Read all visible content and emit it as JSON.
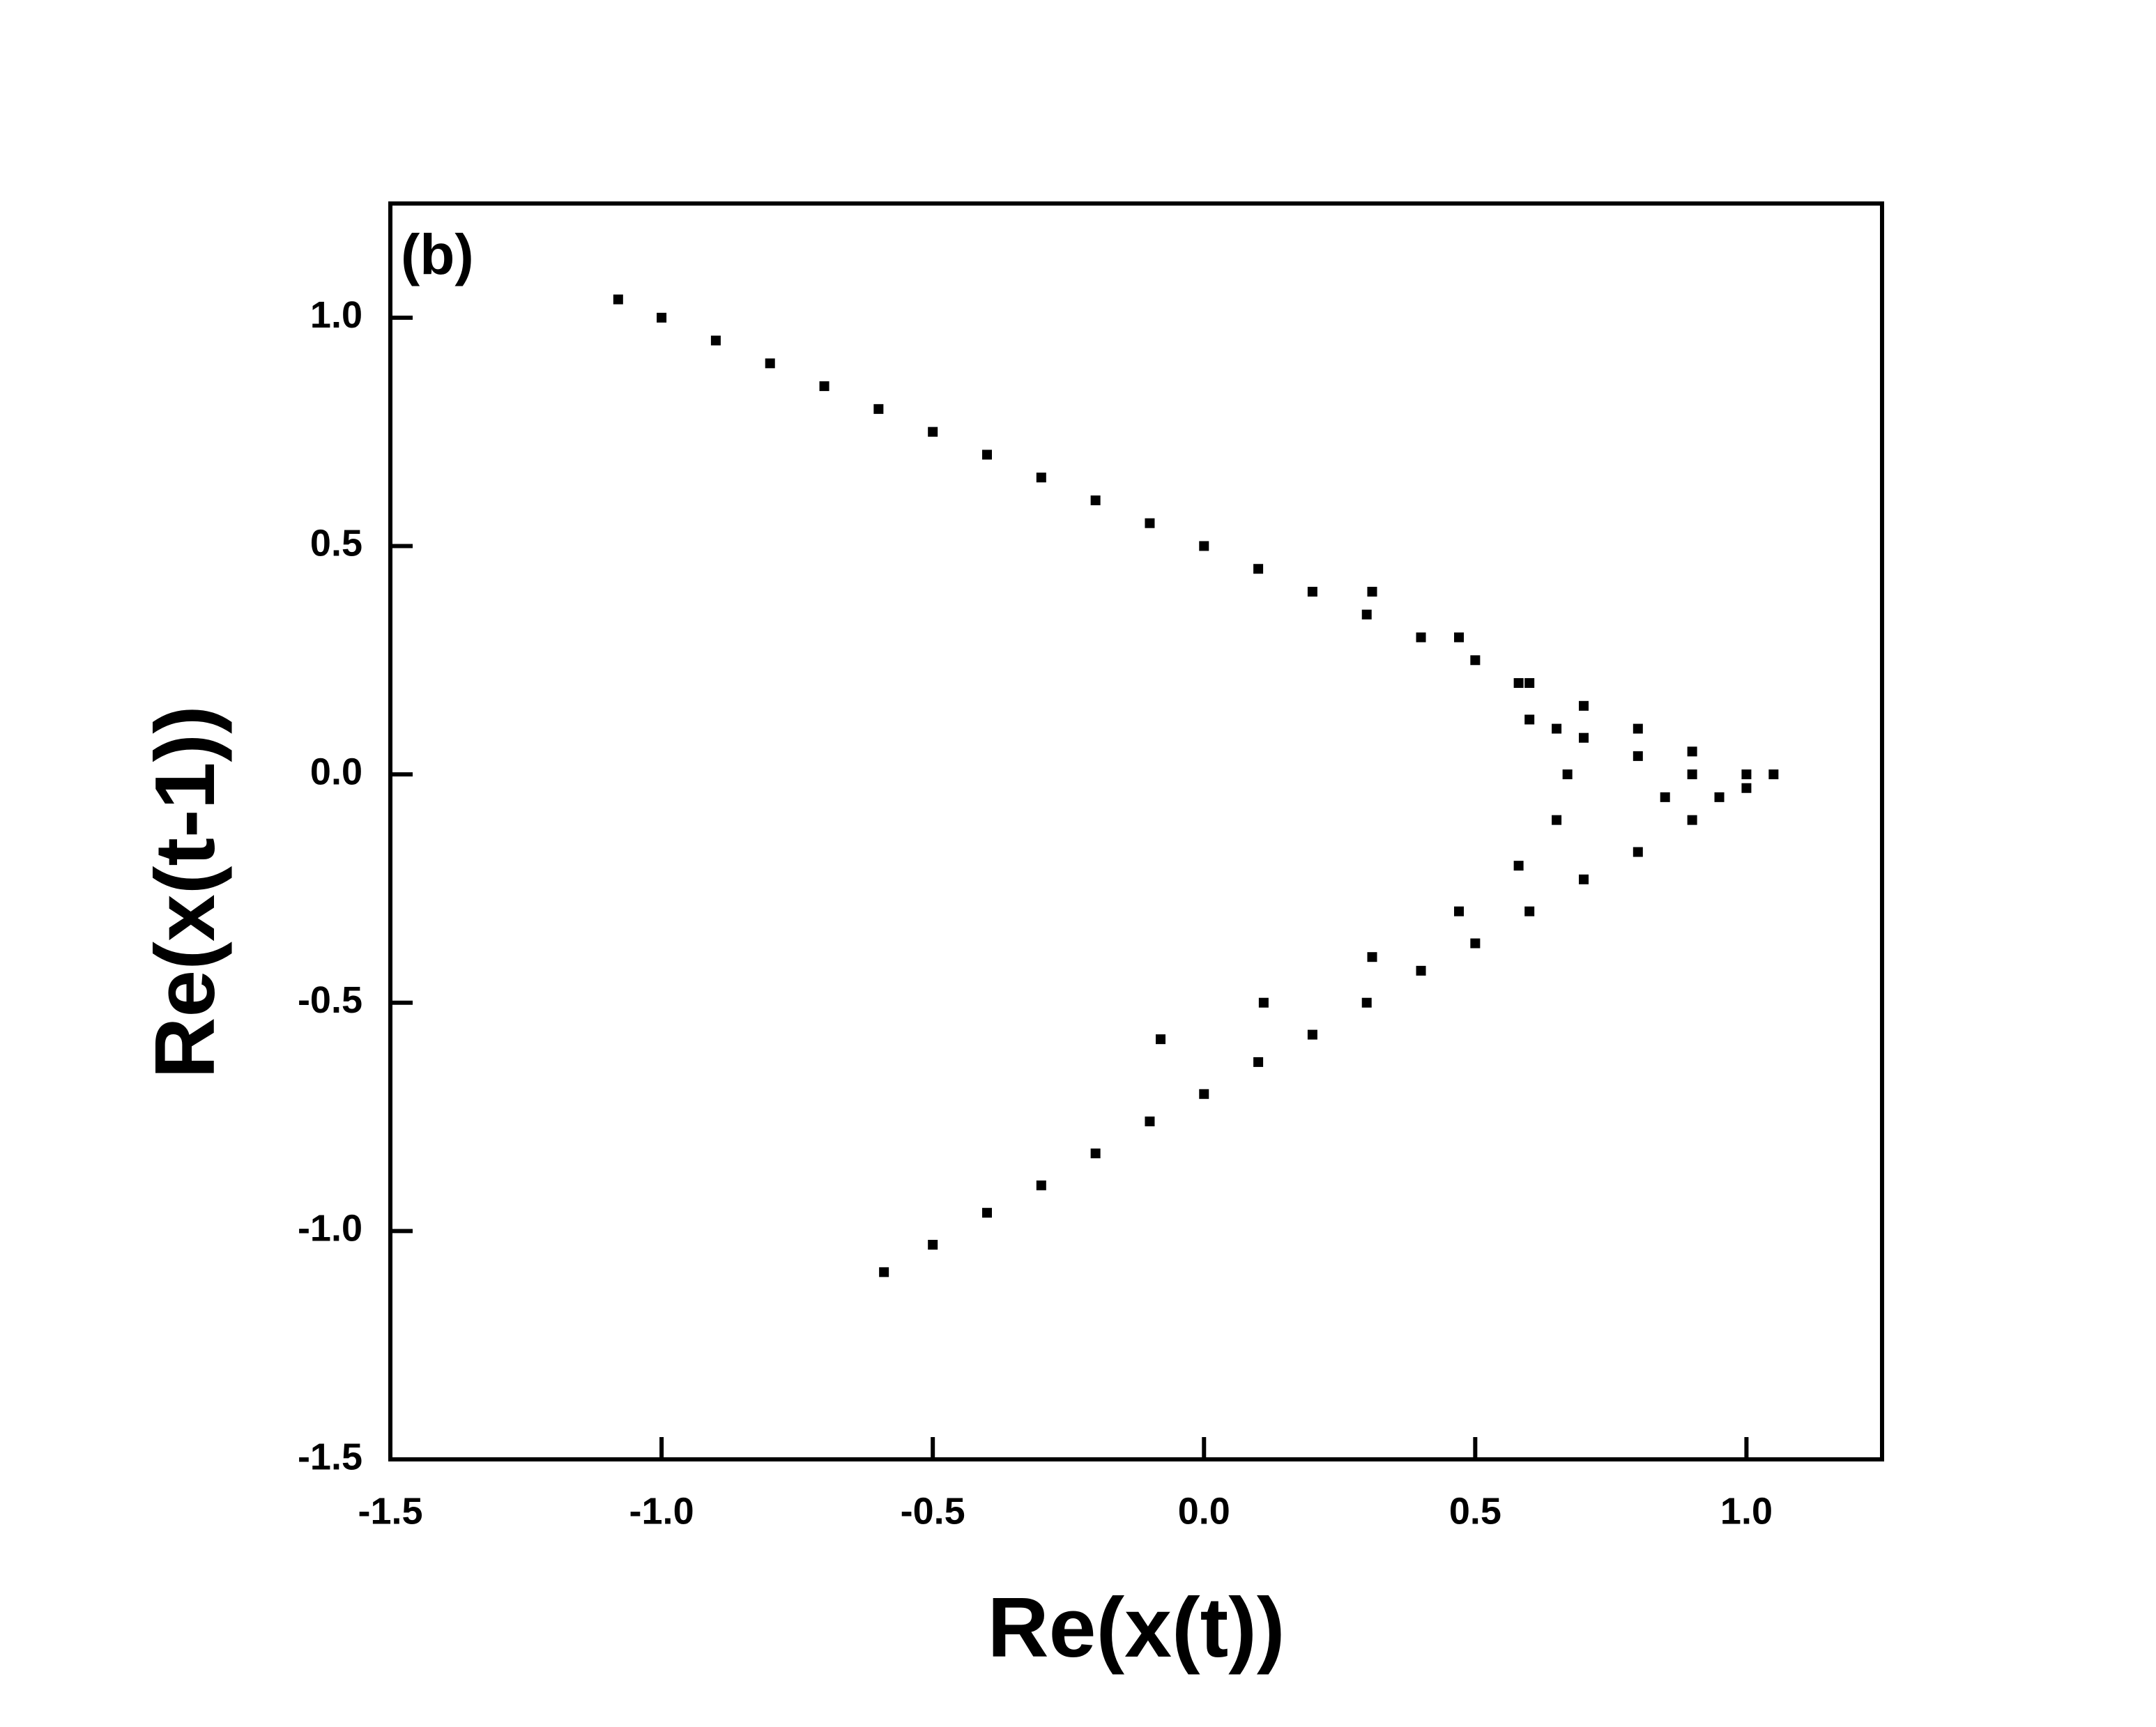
{
  "chart_data": {
    "type": "scatter",
    "annotation": "(b)",
    "x_label": "Re(x(t))",
    "y_label": "Re(x(t-1))",
    "xlim": [
      -1.5,
      1.25
    ],
    "ylim": [
      -1.5,
      1.25
    ],
    "xticks": [
      -1.5,
      {
        "value": -1.0,
        "label": "-1.0"
      },
      -0.5,
      {
        "value": 0.0,
        "label": "0.0"
      },
      0.5,
      {
        "value": 1.0,
        "label": "1.0"
      }
    ],
    "yticks": [
      -1.5,
      {
        "value": -1.0,
        "label": "-1.0"
      },
      -0.5,
      {
        "value": 0.0,
        "label": "0.0"
      },
      0.5,
      {
        "value": 1.0,
        "label": "1.0"
      }
    ],
    "series": [
      {
        "color": "#000000",
        "x": [
          -1.08,
          -1.0,
          -0.9,
          -0.8,
          -0.7,
          -0.6,
          -0.5,
          -0.4,
          -0.3,
          -0.2,
          -0.1,
          0.0,
          0.1,
          0.2,
          0.3,
          0.4,
          0.5,
          0.6,
          0.7,
          0.8,
          0.9,
          1.0,
          1.05,
          -0.59,
          -0.5,
          -0.4,
          -0.3,
          -0.2,
          -0.1,
          0.0,
          0.1,
          0.2,
          0.3,
          0.4,
          0.5,
          0.6,
          0.7,
          0.8,
          0.9,
          1.0,
          -0.08,
          0.11,
          0.31,
          0.47,
          0.58,
          0.65,
          0.67,
          0.65,
          0.58,
          0.47,
          0.31,
          0.6,
          0.7,
          0.8,
          0.85,
          0.9,
          0.95
        ],
        "y": [
          1.04,
          1.0,
          0.95,
          0.9,
          0.85,
          0.8,
          0.75,
          0.7,
          0.65,
          0.6,
          0.55,
          0.5,
          0.45,
          0.4,
          0.35,
          0.3,
          0.25,
          0.2,
          0.15,
          0.1,
          0.05,
          0.0,
          0.0,
          -1.09,
          -1.03,
          -0.96,
          -0.9,
          -0.83,
          -0.76,
          -0.7,
          -0.63,
          -0.57,
          -0.5,
          -0.43,
          -0.37,
          -0.3,
          -0.23,
          -0.17,
          -0.1,
          -0.03,
          -0.58,
          -0.5,
          -0.4,
          -0.3,
          -0.2,
          -0.1,
          0.0,
          0.1,
          0.2,
          0.3,
          0.4,
          0.12,
          0.08,
          0.04,
          -0.05,
          0.0,
          -0.05
        ]
      }
    ]
  }
}
